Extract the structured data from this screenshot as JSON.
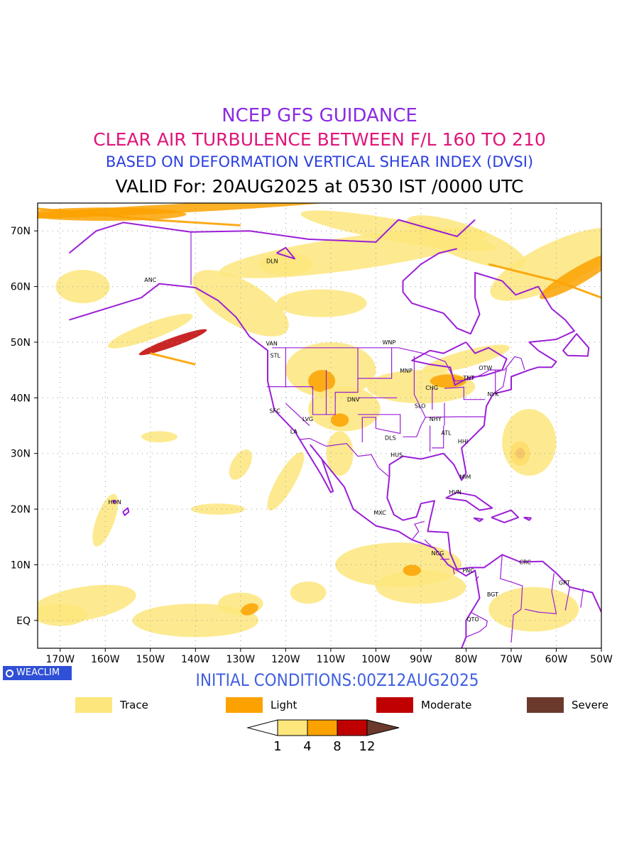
{
  "titles": {
    "line1": "NCEP GFS GUIDANCE",
    "line2": "CLEAR AIR TURBULENCE BETWEEN F/L 160 TO 210",
    "line3": "BASED ON DEFORMATION VERTICAL SHEAR INDEX (DVSI)",
    "line4": "VALID For: 20AUG2025 at 0530 IST /0000 UTC"
  },
  "initial_conditions": "INITIAL CONDITIONS:00Z12AUG2025",
  "logo_text": "WEACLIM",
  "map": {
    "lon_range": [
      -175,
      -50
    ],
    "lat_range": [
      -5,
      75
    ],
    "lon_ticks": [
      {
        "value": -170,
        "label": "170W"
      },
      {
        "value": -160,
        "label": "160W"
      },
      {
        "value": -150,
        "label": "150W"
      },
      {
        "value": -140,
        "label": "140W"
      },
      {
        "value": -130,
        "label": "130W"
      },
      {
        "value": -120,
        "label": "120W"
      },
      {
        "value": -110,
        "label": "110W"
      },
      {
        "value": -100,
        "label": "100W"
      },
      {
        "value": -90,
        "label": "90W"
      },
      {
        "value": -80,
        "label": "80W"
      },
      {
        "value": -70,
        "label": "70W"
      },
      {
        "value": -60,
        "label": "60W"
      },
      {
        "value": -50,
        "label": "50W"
      }
    ],
    "lat_ticks": [
      {
        "value": 0,
        "label": "EQ"
      },
      {
        "value": 10,
        "label": "10N"
      },
      {
        "value": 20,
        "label": "20N"
      },
      {
        "value": 30,
        "label": "30N"
      },
      {
        "value": 40,
        "label": "40N"
      },
      {
        "value": 50,
        "label": "50N"
      },
      {
        "value": 60,
        "label": "60N"
      },
      {
        "value": 70,
        "label": "70N"
      }
    ],
    "stations": [
      {
        "code": "ANC",
        "lon": -150.0,
        "lat": 61.2
      },
      {
        "code": "DLN",
        "lon": -123.0,
        "lat": 64.6
      },
      {
        "code": "VAN",
        "lon": -123.1,
        "lat": 49.8
      },
      {
        "code": "STL",
        "lon": -122.3,
        "lat": 47.6
      },
      {
        "code": "WNP",
        "lon": -97.1,
        "lat": 50.0
      },
      {
        "code": "MNP",
        "lon": -93.3,
        "lat": 44.9
      },
      {
        "code": "OTW",
        "lon": -75.7,
        "lat": 45.4
      },
      {
        "code": "TNT",
        "lon": -79.4,
        "lat": 43.6
      },
      {
        "code": "CHG",
        "lon": -87.6,
        "lat": 41.8
      },
      {
        "code": "NYK",
        "lon": -74.0,
        "lat": 40.7
      },
      {
        "code": "SFC",
        "lon": -122.4,
        "lat": 37.7
      },
      {
        "code": "DNV",
        "lon": -105.0,
        "lat": 39.7
      },
      {
        "code": "SLO",
        "lon": -90.2,
        "lat": 38.6
      },
      {
        "code": "LVG",
        "lon": -115.1,
        "lat": 36.2
      },
      {
        "code": "LA",
        "lon": -118.2,
        "lat": 34.0
      },
      {
        "code": "NHY",
        "lon": -86.8,
        "lat": 36.2
      },
      {
        "code": "ATL",
        "lon": -84.4,
        "lat": 33.7
      },
      {
        "code": "DLS",
        "lon": -96.8,
        "lat": 32.8
      },
      {
        "code": "HHI",
        "lon": -80.7,
        "lat": 32.2
      },
      {
        "code": "HUS",
        "lon": -95.4,
        "lat": 29.8
      },
      {
        "code": "MIM",
        "lon": -80.2,
        "lat": 25.8
      },
      {
        "code": "HVN",
        "lon": -82.4,
        "lat": 23.1
      },
      {
        "code": "HON",
        "lon": -157.9,
        "lat": 21.3
      },
      {
        "code": "MXC",
        "lon": -99.1,
        "lat": 19.4
      },
      {
        "code": "NCG",
        "lon": -86.3,
        "lat": 12.1
      },
      {
        "code": "CRC",
        "lon": -66.9,
        "lat": 10.5
      },
      {
        "code": "PNC",
        "lon": -79.5,
        "lat": 9.0
      },
      {
        "code": "GRT",
        "lon": -58.2,
        "lat": 6.8
      },
      {
        "code": "BGT",
        "lon": -74.1,
        "lat": 4.7
      },
      {
        "code": "QTO",
        "lon": -78.5,
        "lat": 0.2
      }
    ]
  },
  "legend": {
    "categories": [
      {
        "label": "Trace",
        "color": "#fde67c"
      },
      {
        "label": "Light",
        "color": "#fba200"
      },
      {
        "label": "Moderate",
        "color": "#c00000"
      },
      {
        "label": "Severe",
        "color": "#6b3a2c"
      }
    ],
    "colorbar": {
      "levels": [
        "1",
        "4",
        "8",
        "12"
      ],
      "colors": [
        "#ffffff",
        "#fde67c",
        "#fba200",
        "#c00000",
        "#6b3a2c"
      ]
    }
  },
  "colors": {
    "coastline": "#9b1fd6",
    "border": "#9b1fd6",
    "grid": "#999999"
  }
}
